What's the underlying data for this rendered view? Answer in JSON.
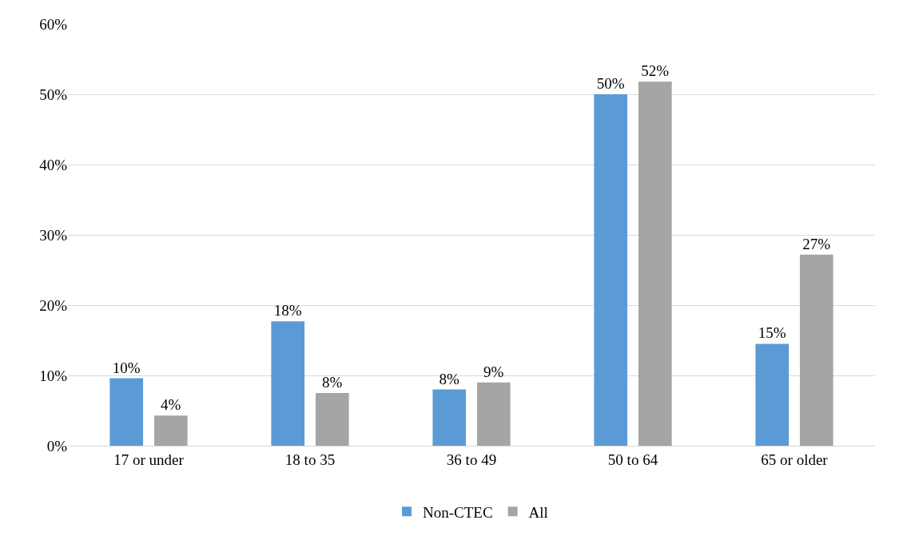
{
  "chart_data": {
    "type": "bar",
    "categories": [
      "17 or under",
      "18 to 35",
      "36 to 49",
      "50 to 64",
      "65 or older"
    ],
    "series": [
      {
        "name": "Non-CTEC",
        "color": "#5b9bd5",
        "values": [
          9.6,
          17.7,
          8.0,
          50.0,
          14.5
        ],
        "value_labels": [
          "10%",
          "18%",
          "8%",
          "50%",
          "15%"
        ]
      },
      {
        "name": "All",
        "color": "#a5a5a5",
        "values": [
          4.3,
          7.5,
          9.0,
          51.8,
          27.2
        ],
        "value_labels": [
          "4%",
          "8%",
          "9%",
          "52%",
          "27%"
        ]
      }
    ],
    "ylim": [
      0,
      60
    ],
    "yticks": [
      {
        "value": 0,
        "label": "0%"
      },
      {
        "value": 10,
        "label": "10%"
      },
      {
        "value": 20,
        "label": "20%"
      },
      {
        "value": 30,
        "label": "30%"
      },
      {
        "value": 40,
        "label": "40%"
      },
      {
        "value": 50,
        "label": "50%"
      },
      {
        "value": 60,
        "label": "60%"
      }
    ],
    "grid": "y",
    "legend": "bottom"
  }
}
